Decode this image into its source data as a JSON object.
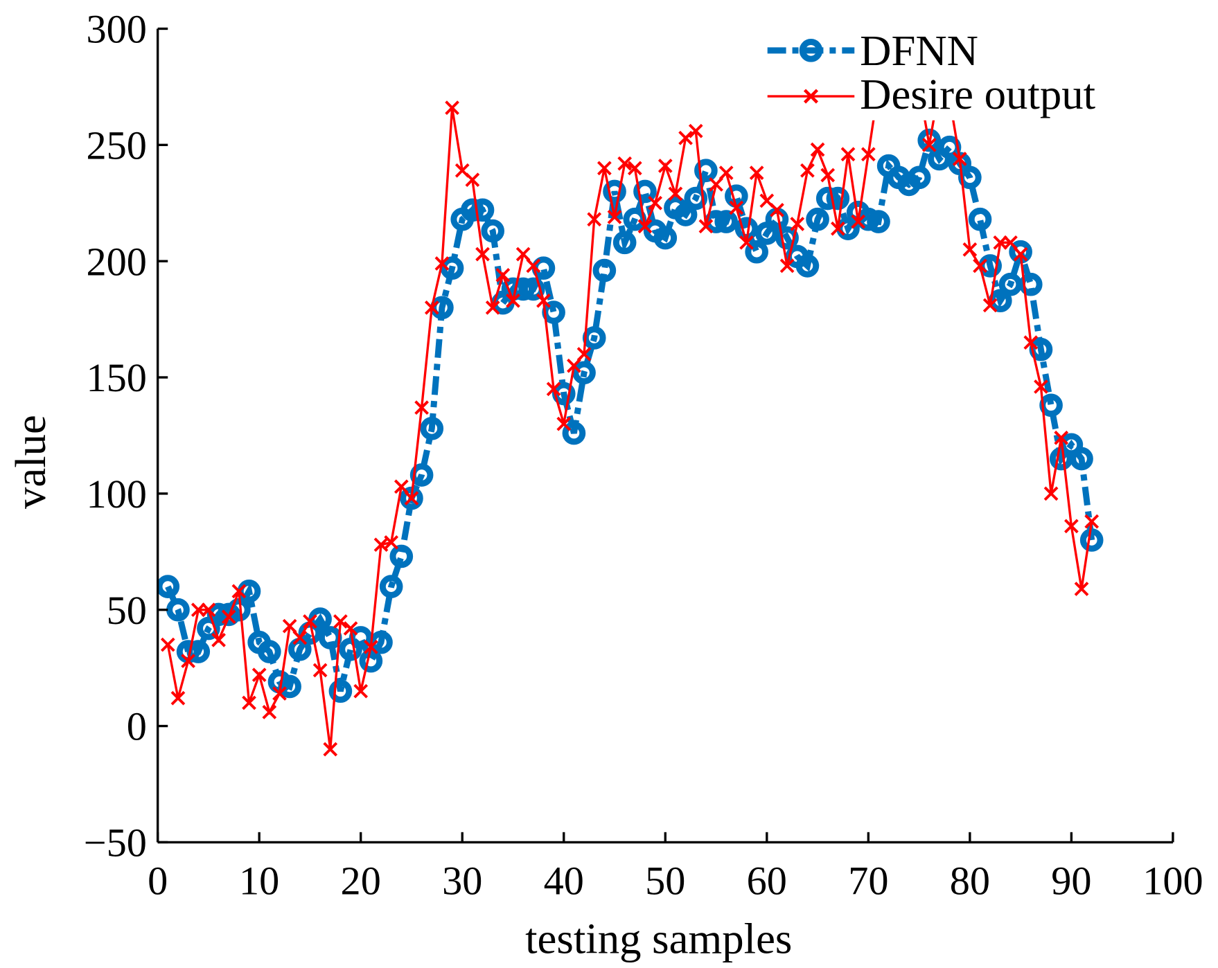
{
  "chart_data": {
    "type": "line",
    "title": "",
    "xlabel": "testing samples",
    "ylabel": "value",
    "xlim": [
      0,
      100
    ],
    "ylim": [
      -50,
      300
    ],
    "xticks": [
      0,
      10,
      20,
      30,
      40,
      50,
      60,
      70,
      80,
      90,
      100
    ],
    "yticks": [
      -50,
      0,
      50,
      100,
      150,
      200,
      250,
      300
    ],
    "xtick_labels": [
      "0",
      "10",
      "20",
      "30",
      "40",
      "50",
      "60",
      "70",
      "80",
      "90",
      "100"
    ],
    "ytick_labels": [
      "−50",
      "0",
      "50",
      "100",
      "150",
      "200",
      "250",
      "300"
    ],
    "grid": false,
    "legend_position": "top-right",
    "x": [
      1,
      2,
      3,
      4,
      5,
      6,
      7,
      8,
      9,
      10,
      11,
      12,
      13,
      14,
      15,
      16,
      17,
      18,
      19,
      20,
      21,
      22,
      23,
      24,
      25,
      26,
      27,
      28,
      29,
      30,
      31,
      32,
      33,
      34,
      35,
      36,
      37,
      38,
      39,
      40,
      41,
      42,
      43,
      44,
      45,
      46,
      47,
      48,
      49,
      50,
      51,
      52,
      53,
      54,
      55,
      56,
      57,
      58,
      59,
      60,
      61,
      62,
      63,
      64,
      65,
      66,
      67,
      68,
      69,
      70,
      71,
      72,
      73,
      74,
      75,
      76,
      77,
      78,
      79,
      80,
      81,
      82,
      83,
      84,
      85,
      86,
      87,
      88,
      89,
      90,
      91,
      92
    ],
    "series": [
      {
        "name": "DFNN",
        "color": "#0072bd",
        "style": "dash-dot, circle markers",
        "values": [
          60,
          50,
          32,
          32,
          42,
          48,
          48,
          50,
          58,
          36,
          32,
          19,
          17,
          33,
          40,
          46,
          38,
          15,
          33,
          38,
          28,
          36,
          60,
          73,
          98,
          108,
          128,
          180,
          197,
          218,
          222,
          222,
          213,
          182,
          188,
          188,
          188,
          197,
          178,
          143,
          126,
          152,
          167,
          196,
          230,
          208,
          218,
          230,
          213,
          210,
          223,
          220,
          227,
          239,
          217,
          217,
          228,
          214,
          204,
          212,
          218,
          210,
          202,
          198,
          218,
          227,
          227,
          214,
          221,
          218,
          217,
          241,
          236,
          233,
          236,
          252,
          244,
          249,
          242,
          236,
          218,
          198,
          183,
          190,
          204,
          190,
          162,
          138,
          115,
          121,
          115,
          80
        ]
      },
      {
        "name": "Desire output",
        "color": "#ff0000",
        "style": "solid, x markers",
        "values": [
          35,
          12,
          28,
          50,
          50,
          37,
          47,
          58,
          10,
          22,
          6,
          14,
          43,
          38,
          45,
          24,
          -10,
          45,
          42,
          15,
          34,
          78,
          79,
          103,
          98,
          137,
          180,
          199,
          266,
          239,
          235,
          203,
          180,
          194,
          183,
          203,
          198,
          183,
          145,
          130,
          155,
          160,
          218,
          240,
          219,
          242,
          240,
          215,
          225,
          241,
          229,
          253,
          256,
          215,
          233,
          238,
          223,
          208,
          238,
          226,
          222,
          198,
          216,
          239,
          248,
          237,
          214,
          246,
          217,
          246,
          275,
          280,
          290,
          285,
          275,
          250,
          275,
          270,
          244,
          205,
          198,
          181,
          208,
          208,
          203,
          165,
          146,
          100,
          124,
          86,
          59,
          88
        ]
      }
    ]
  }
}
